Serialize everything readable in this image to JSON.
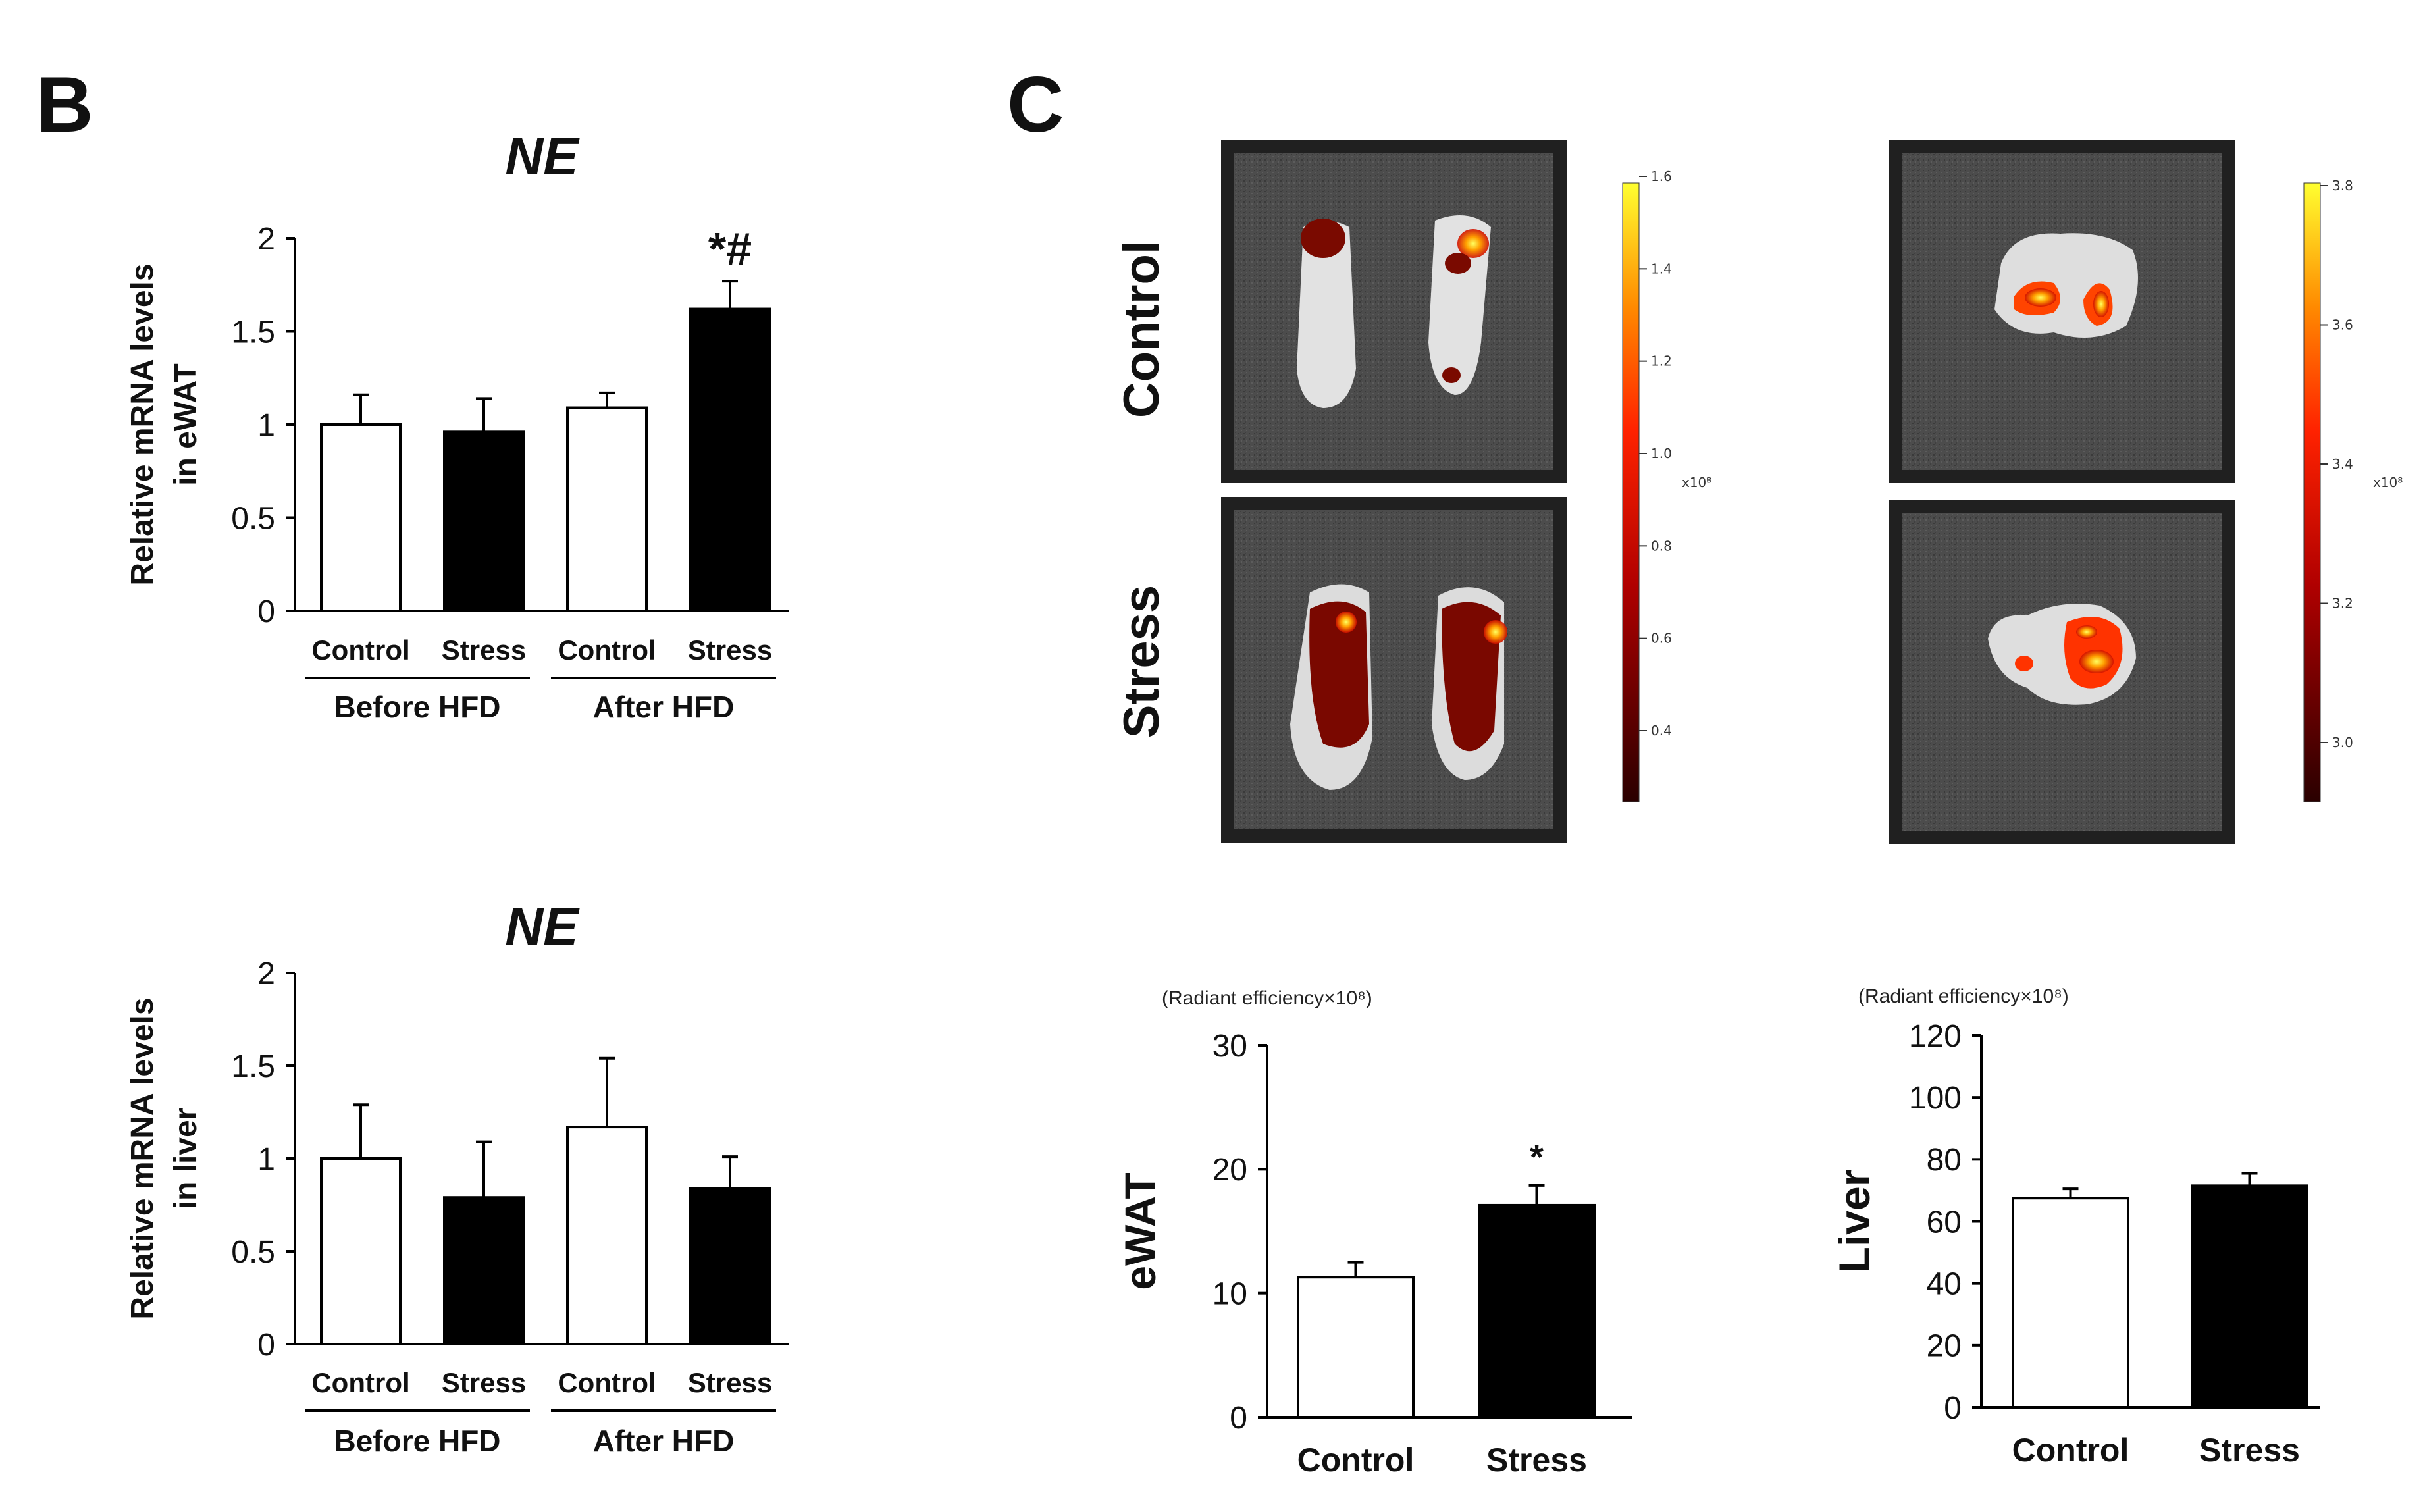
{
  "panels": {
    "B": "B",
    "C": "C"
  },
  "chart_data": [
    {
      "id": "b1",
      "type": "bar",
      "title": "NE",
      "ylabel_lines": [
        "Relative mRNA levels",
        "in eWAT"
      ],
      "ylim": [
        0,
        2
      ],
      "yticks": [
        "0",
        "0.5",
        "1",
        "1.5",
        "2"
      ],
      "categories": [
        "Control",
        "Stress",
        "Control",
        "Stress"
      ],
      "groups": [
        "Before HFD",
        "After HFD"
      ],
      "values": [
        1.0,
        0.96,
        1.09,
        1.62
      ],
      "errors": [
        0.16,
        0.18,
        0.08,
        0.15
      ],
      "fills": [
        "#ffffff",
        "#000000",
        "#ffffff",
        "#000000"
      ],
      "significance": "*#"
    },
    {
      "id": "b2",
      "type": "bar",
      "title": "NE",
      "ylabel_lines": [
        "Relative mRNA levels",
        "in liver"
      ],
      "ylim": [
        0,
        2
      ],
      "yticks": [
        "0",
        "0.5",
        "1",
        "1.5",
        "2"
      ],
      "categories": [
        "Control",
        "Stress",
        "Control",
        "Stress"
      ],
      "groups": [
        "Before HFD",
        "After HFD"
      ],
      "values": [
        1.0,
        0.79,
        1.17,
        0.84
      ],
      "errors": [
        0.29,
        0.3,
        0.37,
        0.17
      ],
      "fills": [
        "#ffffff",
        "#000000",
        "#ffffff",
        "#000000"
      ]
    },
    {
      "id": "c1",
      "type": "bar",
      "unit_note": "(Radiant efficiency×10⁸)",
      "ylabel": "eWAT",
      "ylim": [
        0,
        30
      ],
      "yticks": [
        "0",
        "10",
        "20",
        "30"
      ],
      "categories": [
        "Control",
        "Stress"
      ],
      "values": [
        11.3,
        17.1
      ],
      "errors": [
        1.2,
        1.6
      ],
      "fills": [
        "#ffffff",
        "#000000"
      ],
      "significance": "*"
    },
    {
      "id": "c2",
      "type": "bar",
      "unit_note": "(Radiant efficiency×10⁸)",
      "ylabel": "Liver",
      "ylim": [
        0,
        120
      ],
      "yticks": [
        "0",
        "20",
        "40",
        "60",
        "80",
        "100",
        "120"
      ],
      "categories": [
        "Control",
        "Stress"
      ],
      "values": [
        67.5,
        71.5
      ],
      "errors": [
        3.0,
        4.0
      ],
      "fills": [
        "#ffffff",
        "#000000"
      ]
    }
  ],
  "imaging": {
    "row_labels": [
      "Control",
      "Stress"
    ],
    "colorbar_left": {
      "ticks": [
        "1.6",
        "1.4",
        "1.2",
        "1.0",
        "0.8",
        "0.6",
        "0.4"
      ],
      "unit": "x10⁸"
    },
    "colorbar_right": {
      "ticks": [
        "3.8",
        "3.6",
        "3.4",
        "3.2",
        "3.0"
      ],
      "unit": "x10⁸"
    }
  },
  "colors": {
    "heat_dark": "#3a0000",
    "heat_mid": "#cc1a00",
    "heat_bright": "#ffd400",
    "tissue": "#e4e4e4",
    "tray": "#4a4a4a"
  }
}
